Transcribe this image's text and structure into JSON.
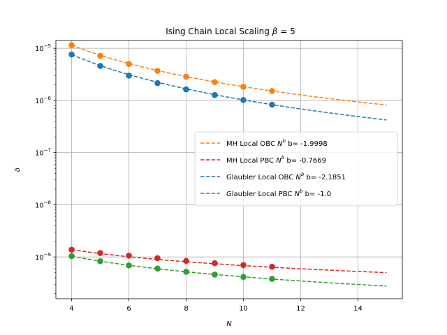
{
  "chart_data": {
    "type": "line",
    "title_text": "Ising Chain Local Scaling ",
    "title_symbol": "β",
    "title_suffix": " = 5",
    "xlabel": "N",
    "ylabel": "δ",
    "xlim": [
      3.45,
      15.55
    ],
    "ylim_log10": [
      -9.8,
      -4.85
    ],
    "yscale": "log",
    "grid": true,
    "legend_position": "center-right",
    "x_ticks": [
      4,
      6,
      8,
      10,
      12,
      14
    ],
    "y_ticks": [
      {
        "exp": -9,
        "base": "10",
        "power": "−9"
      },
      {
        "exp": -8,
        "base": "10",
        "power": "−8"
      },
      {
        "exp": -7,
        "base": "10",
        "power": "−7"
      },
      {
        "exp": -6,
        "base": "10",
        "power": "−6"
      },
      {
        "exp": -5,
        "base": "10",
        "power": "−5"
      }
    ],
    "series": [
      {
        "name": "MH Local OBC",
        "legend_prefix": "MH Local OBC ",
        "legend_b": " b= -1.9998",
        "color": "#ff7f0e",
        "b": -1.9998,
        "fit_x_range": [
          4,
          15
        ],
        "points": [
          {
            "x": 4,
            "y": 1.15e-05
          },
          {
            "x": 5,
            "y": 7.2e-06
          },
          {
            "x": 6,
            "y": 5e-06
          },
          {
            "x": 7,
            "y": 3.7e-06
          },
          {
            "x": 8,
            "y": 2.85e-06
          },
          {
            "x": 9,
            "y": 2.25e-06
          },
          {
            "x": 10,
            "y": 1.83e-06
          },
          {
            "x": 11,
            "y": 1.52e-06
          }
        ]
      },
      {
        "name": "MH Local PBC",
        "legend_prefix": "MH Local PBC ",
        "legend_b": " b= -0.7669",
        "color": "#d62728",
        "b": -0.7669,
        "fit_x_range": [
          4,
          15
        ],
        "points": [
          {
            "x": 4,
            "y": 1.38e-09
          },
          {
            "x": 5,
            "y": 1.19e-09
          },
          {
            "x": 6,
            "y": 1.06e-09
          },
          {
            "x": 7,
            "y": 9.5e-10
          },
          {
            "x": 8,
            "y": 8.4e-10
          },
          {
            "x": 9,
            "y": 7.6e-10
          },
          {
            "x": 10,
            "y": 7e-10
          },
          {
            "x": 11,
            "y": 6.5e-10
          }
        ]
      },
      {
        "name": "Glaubler Local OBC",
        "legend_prefix": "Glaubler Local OBC ",
        "legend_b": " b= -2.1851",
        "color": "#1f77b4",
        "b": -2.1851,
        "fit_x_range": [
          4,
          15
        ],
        "points": [
          {
            "x": 4,
            "y": 7.6e-06
          },
          {
            "x": 5,
            "y": 4.6e-06
          },
          {
            "x": 6,
            "y": 3e-06
          },
          {
            "x": 7,
            "y": 2.15e-06
          },
          {
            "x": 8,
            "y": 1.63e-06
          },
          {
            "x": 9,
            "y": 1.27e-06
          },
          {
            "x": 10,
            "y": 1.02e-06
          },
          {
            "x": 11,
            "y": 8.3e-07
          }
        ]
      },
      {
        "name": "Glaubler Local PBC",
        "legend_prefix": "Glaubler Local PBC ",
        "legend_b": " b= -1.0",
        "color": "#2ca02c",
        "b": -1.0,
        "fit_x_range": [
          4,
          15
        ],
        "points": [
          {
            "x": 4,
            "y": 1.04e-09
          },
          {
            "x": 5,
            "y": 8.3e-10
          },
          {
            "x": 6,
            "y": 6.9e-10
          },
          {
            "x": 7,
            "y": 6e-10
          },
          {
            "x": 8,
            "y": 5.2e-10
          },
          {
            "x": 9,
            "y": 4.6e-10
          },
          {
            "x": 10,
            "y": 4.15e-10
          },
          {
            "x": 11,
            "y": 3.8e-10
          }
        ]
      }
    ]
  }
}
